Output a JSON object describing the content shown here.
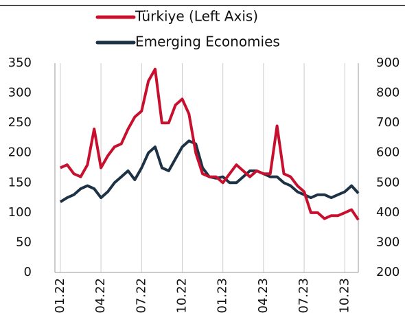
{
  "chart_data": {
    "type": "line",
    "x": [
      0,
      0.5,
      1,
      1.5,
      2,
      2.5,
      3,
      3.5,
      4,
      4.5,
      5,
      5.5,
      6,
      6.5,
      7,
      7.5,
      8,
      8.5,
      9,
      9.5,
      10,
      10.5,
      11,
      11.5,
      12,
      12.5,
      13,
      13.5,
      14,
      14.5,
      15,
      15.5,
      16,
      16.5,
      17,
      17.5,
      18,
      18.5,
      19,
      19.5,
      20,
      20.5,
      21,
      21.5,
      22
    ],
    "series": [
      {
        "name": "Türkiye (Left Axis)",
        "color": "#c8102e",
        "values": [
          175,
          180,
          165,
          160,
          180,
          240,
          175,
          195,
          210,
          215,
          240,
          260,
          270,
          320,
          340,
          250,
          250,
          280,
          290,
          265,
          200,
          165,
          160,
          160,
          150,
          165,
          180,
          170,
          160,
          170,
          165,
          165,
          245,
          165,
          160,
          145,
          135,
          100,
          100,
          90,
          95,
          95,
          100,
          105,
          88
        ]
      },
      {
        "name": "Emerging Economies",
        "color": "#1e3246",
        "axis": "y2",
        "values": [
          436,
          450,
          460,
          480,
          490,
          480,
          450,
          470,
          500,
          520,
          540,
          510,
          550,
          600,
          620,
          550,
          540,
          580,
          620,
          640,
          630,
          550,
          520,
          515,
          520,
          500,
          500,
          520,
          540,
          540,
          530,
          520,
          520,
          500,
          490,
          470,
          460,
          450,
          460,
          460,
          450,
          460,
          470,
          490,
          465
        ]
      }
    ],
    "xlim": [
      -0.4,
      22
    ],
    "xticks": [
      {
        "value": 0,
        "label": "01.22"
      },
      {
        "value": 3,
        "label": "04.22"
      },
      {
        "value": 6,
        "label": "07.22"
      },
      {
        "value": 9,
        "label": "10.22"
      },
      {
        "value": 12,
        "label": "01.23"
      },
      {
        "value": 15,
        "label": "04.23"
      },
      {
        "value": 18,
        "label": "07.23"
      },
      {
        "value": 21,
        "label": "10.23"
      }
    ],
    "ylim": [
      0,
      350
    ],
    "yticks": [
      0,
      50,
      100,
      150,
      200,
      250,
      300,
      350
    ],
    "y2lim": [
      200,
      900
    ],
    "y2ticks": [
      200,
      300,
      400,
      500,
      600,
      700,
      800,
      900
    ],
    "grid": true
  }
}
